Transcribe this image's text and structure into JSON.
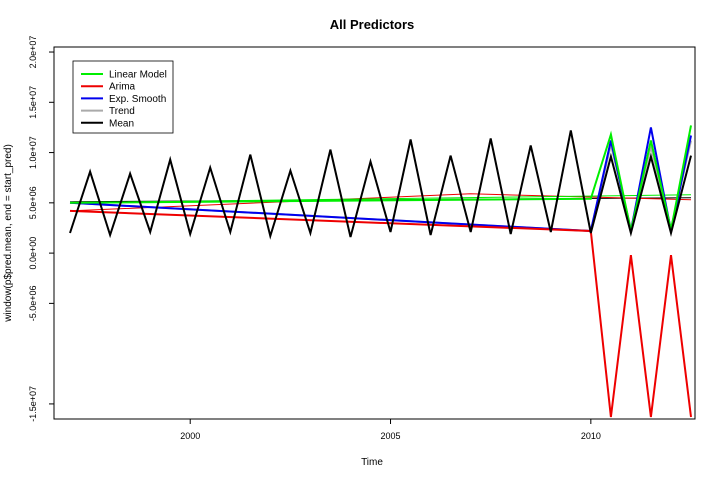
{
  "chart_data": {
    "type": "line",
    "title": "All Predictors",
    "xlabel": "Time",
    "ylabel": "window(p$pred.mean, end = start_pred)",
    "xlim": [
      1996.6,
      2012.6
    ],
    "ylim": [
      -16500000,
      20500000
    ],
    "x_ticks": [
      2000,
      2005,
      2010
    ],
    "x_tick_labels": [
      "2000",
      "2005",
      "2010"
    ],
    "y_ticks": [
      -15000000,
      -5000000,
      0,
      5000000,
      10000000,
      15000000,
      20000000
    ],
    "y_tick_labels": [
      "-1.5e+07",
      "-5.0e+06",
      "0.0e+00",
      "5.0e+06",
      "1.0e+07",
      "1.5e+07",
      "2.0e+07"
    ],
    "grid": false,
    "legend_position": "top-left",
    "series": [
      {
        "name": "Linear Model",
        "color": "#00ee00",
        "x": [
          1997,
          2010,
          2010.5,
          2011,
          2011.5,
          2012,
          2012.5
        ],
        "y": [
          5000000,
          5400000,
          11800000,
          2200000,
          11200000,
          2300000,
          12700000
        ]
      },
      {
        "name": "Arima",
        "color": "#ee0000",
        "x": [
          1997,
          2010,
          2010.5,
          2011,
          2011.5,
          2012,
          2012.5
        ],
        "y": [
          4200000,
          2200000,
          -16300000,
          -200000,
          -16300000,
          -200000,
          -16300000
        ]
      },
      {
        "name": "Exp. Smooth",
        "color": "#0000ee",
        "x": [
          1997,
          2010,
          2010.5,
          2011,
          2011.5,
          2012,
          2012.5
        ],
        "y": [
          5000000,
          2200000,
          11200000,
          2200000,
          12500000,
          2200000,
          11700000
        ]
      },
      {
        "name": "Trend",
        "color": "#aaaaaa",
        "x": [
          1997,
          2010,
          2010.5,
          2011,
          2011.5,
          2012,
          2012.5
        ],
        "y": [
          5000000,
          2200000,
          10800000,
          2400000,
          10600000,
          2400000,
          11200000
        ]
      },
      {
        "name": "Mean",
        "color": "#000000",
        "x": [
          1997,
          1997.5,
          1998,
          1998.5,
          1999,
          1999.5,
          2000,
          2000.5,
          2001,
          2001.5,
          2002,
          2002.5,
          2003,
          2003.5,
          2004,
          2004.5,
          2005,
          2005.5,
          2006,
          2006.5,
          2007,
          2007.5,
          2008,
          2008.5,
          2009,
          2009.5,
          2010,
          2010.5,
          2011,
          2011.5,
          2012,
          2012.5
        ],
        "y": [
          2000000,
          8100000,
          1800000,
          7900000,
          2100000,
          9300000,
          1900000,
          8500000,
          2100000,
          9800000,
          1700000,
          8200000,
          2000000,
          10300000,
          1600000,
          9100000,
          2100000,
          11300000,
          1800000,
          9700000,
          2100000,
          11400000,
          1900000,
          10700000,
          2100000,
          12200000,
          2000000,
          9600000,
          2000000,
          9600000,
          2000000,
          9700000
        ]
      }
    ],
    "reference_lines": [
      {
        "color": "#000000",
        "x": [
          1997,
          2012.5
        ],
        "y": [
          5100000,
          5500000
        ]
      },
      {
        "color": "#ee0000",
        "x": [
          1997,
          2007,
          2012.5
        ],
        "y": [
          4200000,
          5900000,
          5300000
        ]
      },
      {
        "color": "#00ee00",
        "x": [
          1997,
          2012.5
        ],
        "y": [
          5000000,
          5800000
        ]
      }
    ]
  }
}
